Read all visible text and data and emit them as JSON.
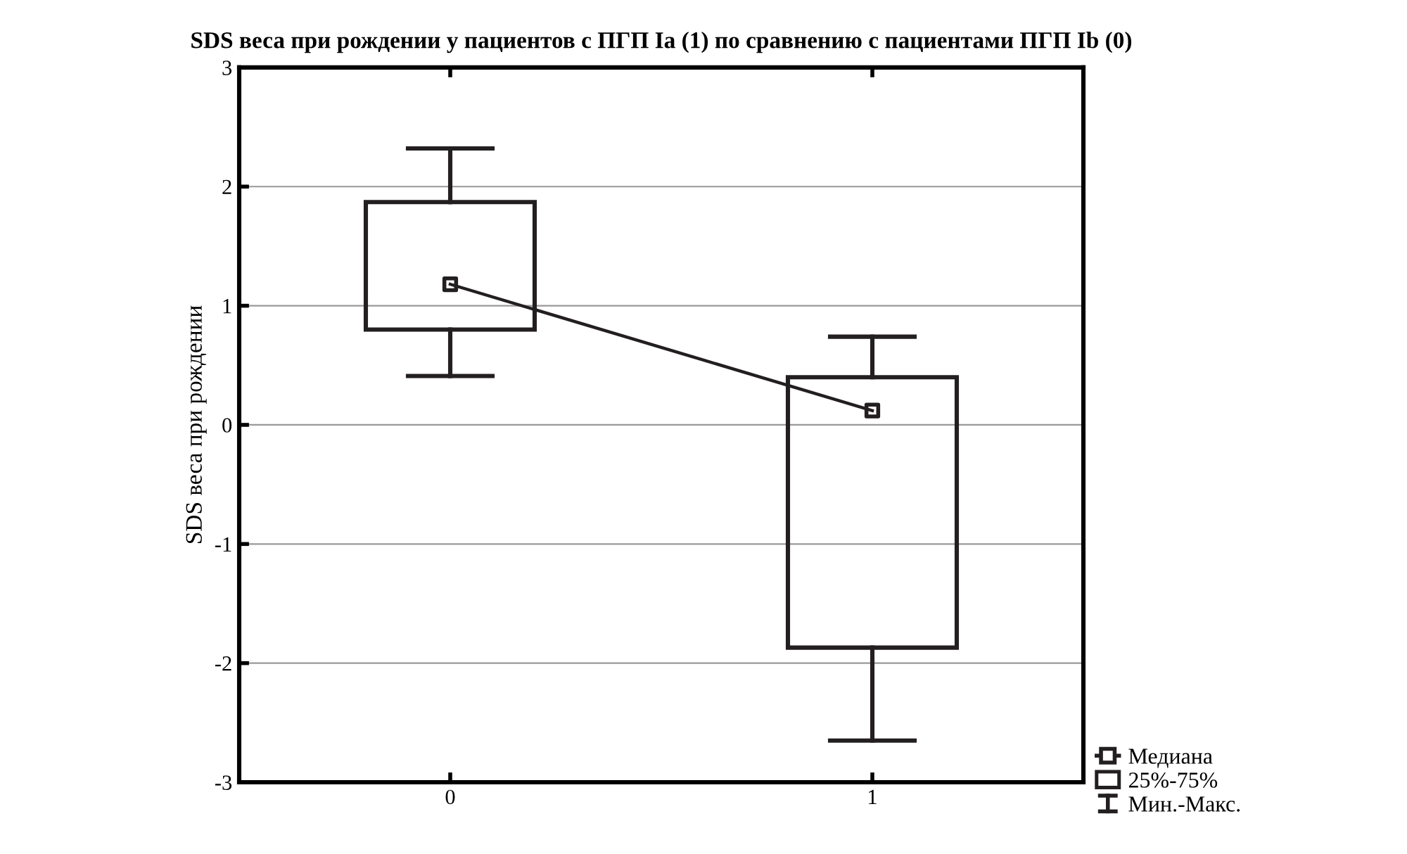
{
  "chart_data": {
    "type": "box",
    "title": "SDS веса при рождении у пациентов с ПГП Iа (1) по сравнению с пациентами ПГП Ib (0)",
    "ylabel": "SDS веса при рождении",
    "categories": [
      "0",
      "1"
    ],
    "ylim": [
      -3,
      3
    ],
    "yticks": [
      -3,
      -2,
      -1,
      0,
      1,
      2,
      3
    ],
    "grid": "y",
    "legend": "bottom right",
    "annotations": [
      "Мин.-Макс."
    ],
    "series": [
      {
        "name": "25%-75%",
        "color": "#231f20",
        "marker": "square",
        "boxes": [
          {
            "low": 0.41,
            "q1": 0.8,
            "median": 1.18,
            "q3": 1.87,
            "high": 2.32
          },
          {
            "low": -2.65,
            "q1": -1.87,
            "median": 0.12,
            "q3": 0.4,
            "high": 0.74
          }
        ]
      },
      {
        "type": "line",
        "name": "Медиана",
        "color": "#231f20",
        "values": [
          1.18,
          0.12
        ]
      }
    ]
  }
}
